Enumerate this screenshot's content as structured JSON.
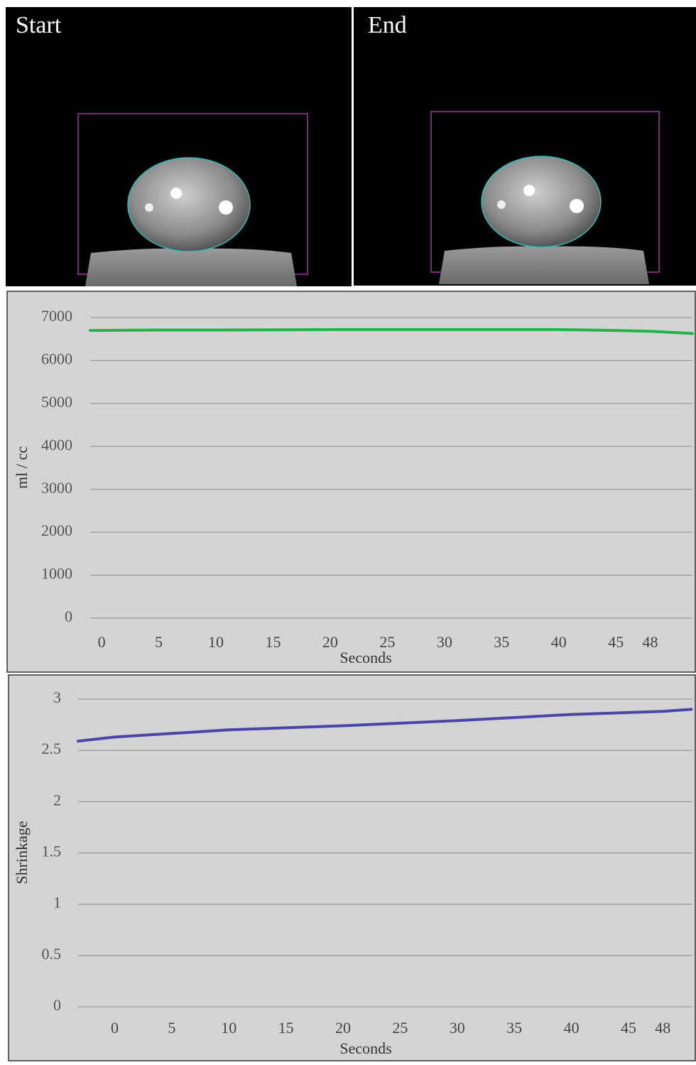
{
  "images": [
    {
      "label": "Start"
    },
    {
      "label": "End"
    }
  ],
  "chart_data": [
    {
      "type": "line",
      "y_label": "ml / cc",
      "x_label": "Seconds",
      "color": "#22b34a",
      "x": [
        -1,
        5,
        10,
        20,
        30,
        40,
        45,
        48,
        51.7
      ],
      "values": [
        6700,
        6710,
        6710,
        6720,
        6720,
        6720,
        6700,
        6680,
        6630
      ],
      "xlim": [
        -1,
        51.7
      ],
      "xticks": [
        0,
        5,
        10,
        15,
        20,
        25,
        30,
        35,
        40,
        45,
        48
      ],
      "ylim": [
        0,
        7000
      ],
      "yticks": [
        0,
        1000,
        2000,
        3000,
        4000,
        5000,
        6000,
        7000
      ],
      "grid": true
    },
    {
      "type": "line",
      "y_label": "Shrinkage",
      "x_label": "Seconds",
      "color": "#4b45a8",
      "x": [
        -3.2,
        0,
        10,
        20,
        30,
        40,
        48,
        50.5
      ],
      "values": [
        2.59,
        2.63,
        2.7,
        2.74,
        2.79,
        2.85,
        2.88,
        2.9
      ],
      "xlim": [
        -3.2,
        50.6
      ],
      "xticks": [
        0,
        5,
        10,
        15,
        20,
        25,
        30,
        35,
        40,
        45,
        48
      ],
      "ylim": [
        0,
        3
      ],
      "yticks": [
        0,
        0.5,
        1,
        1.5,
        2,
        2.5,
        3
      ],
      "grid": true
    }
  ]
}
